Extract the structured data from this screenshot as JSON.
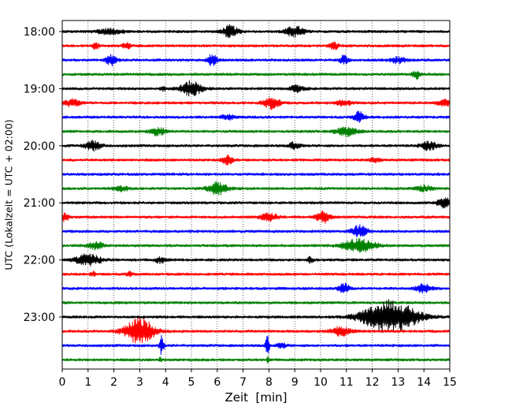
{
  "chart_data": {
    "type": "line",
    "subtype": "helicorder-seismogram",
    "title": "",
    "xlabel": "Zeit  [min]",
    "ylabel": "UTC (Lokalzeit = UTC + 02:00)",
    "xlim": [
      0,
      15
    ],
    "x_ticks": [
      0,
      1,
      2,
      3,
      4,
      5,
      6,
      7,
      8,
      9,
      10,
      11,
      12,
      13,
      14,
      15
    ],
    "x_tick_labels": [
      "0",
      "1",
      "2",
      "3",
      "4",
      "5",
      "6",
      "7",
      "8",
      "9",
      "10",
      "11",
      "12",
      "13",
      "14",
      "15"
    ],
    "y_ticks": [
      {
        "row": 0,
        "label": "18:00"
      },
      {
        "row": 4,
        "label": "19:00"
      },
      {
        "row": 8,
        "label": "20:00"
      },
      {
        "row": 12,
        "label": "21:00"
      },
      {
        "row": 16,
        "label": "22:00"
      },
      {
        "row": 20,
        "label": "23:00"
      }
    ],
    "row_minutes": 15,
    "row_count": 24,
    "grid": "vertical-dotted",
    "color_cycle": [
      "#000000",
      "#ff0000",
      "#0000ff",
      "#008000"
    ],
    "bursts": [
      {
        "row": 0,
        "events": [
          {
            "t": 1.8,
            "a": 0.35,
            "w": 0.5
          },
          {
            "t": 6.5,
            "a": 0.8,
            "w": 0.3
          },
          {
            "t": 9.0,
            "a": 0.7,
            "w": 0.35
          }
        ]
      },
      {
        "row": 1,
        "events": [
          {
            "t": 1.3,
            "a": 0.6,
            "w": 0.1
          },
          {
            "t": 2.5,
            "a": 0.5,
            "w": 0.15
          },
          {
            "t": 10.5,
            "a": 0.7,
            "w": 0.15
          }
        ]
      },
      {
        "row": 2,
        "events": [
          {
            "t": 1.9,
            "a": 0.7,
            "w": 0.2
          },
          {
            "t": 5.8,
            "a": 0.7,
            "w": 0.2
          },
          {
            "t": 10.9,
            "a": 0.6,
            "w": 0.15
          },
          {
            "t": 13.0,
            "a": 0.4,
            "w": 0.3
          }
        ]
      },
      {
        "row": 3,
        "events": [
          {
            "t": 13.7,
            "a": 0.6,
            "w": 0.15
          }
        ]
      },
      {
        "row": 4,
        "events": [
          {
            "t": 5.0,
            "a": 1.0,
            "w": 0.4
          },
          {
            "t": 9.1,
            "a": 0.4,
            "w": 0.3
          },
          {
            "t": 3.9,
            "a": 0.3,
            "w": 0.1
          }
        ]
      },
      {
        "row": 5,
        "events": [
          {
            "t": 0.4,
            "a": 0.5,
            "w": 0.3
          },
          {
            "t": 8.1,
            "a": 0.8,
            "w": 0.3
          },
          {
            "t": 10.9,
            "a": 0.4,
            "w": 0.3
          },
          {
            "t": 14.8,
            "a": 0.4,
            "w": 0.3
          }
        ]
      },
      {
        "row": 6,
        "events": [
          {
            "t": 6.4,
            "a": 0.3,
            "w": 0.3
          },
          {
            "t": 11.5,
            "a": 0.8,
            "w": 0.2
          }
        ]
      },
      {
        "row": 7,
        "events": [
          {
            "t": 3.7,
            "a": 0.5,
            "w": 0.3
          },
          {
            "t": 11.0,
            "a": 0.6,
            "w": 0.4
          }
        ]
      },
      {
        "row": 8,
        "events": [
          {
            "t": 1.2,
            "a": 0.7,
            "w": 0.3
          },
          {
            "t": 9.0,
            "a": 0.5,
            "w": 0.2
          },
          {
            "t": 14.2,
            "a": 0.6,
            "w": 0.3
          }
        ]
      },
      {
        "row": 9,
        "events": [
          {
            "t": 6.4,
            "a": 0.6,
            "w": 0.2
          },
          {
            "t": 12.1,
            "a": 0.3,
            "w": 0.2
          }
        ]
      },
      {
        "row": 10,
        "events": []
      },
      {
        "row": 11,
        "events": [
          {
            "t": 2.3,
            "a": 0.3,
            "w": 0.3
          },
          {
            "t": 6.0,
            "a": 0.8,
            "w": 0.4
          },
          {
            "t": 14.0,
            "a": 0.4,
            "w": 0.3
          }
        ]
      },
      {
        "row": 12,
        "events": [
          {
            "t": 14.8,
            "a": 0.6,
            "w": 0.3
          }
        ]
      },
      {
        "row": 13,
        "events": [
          {
            "t": 0.1,
            "a": 0.5,
            "w": 0.15
          },
          {
            "t": 8.0,
            "a": 0.5,
            "w": 0.35
          },
          {
            "t": 10.1,
            "a": 0.8,
            "w": 0.25
          }
        ]
      },
      {
        "row": 14,
        "events": [
          {
            "t": 11.5,
            "a": 0.8,
            "w": 0.3
          }
        ]
      },
      {
        "row": 15,
        "events": [
          {
            "t": 1.3,
            "a": 0.5,
            "w": 0.3
          },
          {
            "t": 11.5,
            "a": 0.9,
            "w": 0.6
          }
        ]
      },
      {
        "row": 16,
        "events": [
          {
            "t": 1.0,
            "a": 0.75,
            "w": 0.5
          },
          {
            "t": 3.8,
            "a": 0.4,
            "w": 0.2
          },
          {
            "t": 9.6,
            "a": 0.4,
            "w": 0.1
          }
        ]
      },
      {
        "row": 17,
        "events": [
          {
            "t": 1.2,
            "a": 0.3,
            "w": 0.1
          },
          {
            "t": 2.6,
            "a": 0.3,
            "w": 0.1
          }
        ]
      },
      {
        "row": 18,
        "events": [
          {
            "t": 10.9,
            "a": 0.7,
            "w": 0.2
          },
          {
            "t": 14.0,
            "a": 0.6,
            "w": 0.3
          }
        ]
      },
      {
        "row": 19,
        "events": []
      },
      {
        "row": 20,
        "events": [
          {
            "t": 12.7,
            "a": 2.3,
            "w": 1.0
          }
        ]
      },
      {
        "row": 21,
        "events": [
          {
            "t": 3.0,
            "a": 1.8,
            "w": 0.55
          },
          {
            "t": 10.8,
            "a": 0.6,
            "w": 0.4
          }
        ]
      },
      {
        "row": 22,
        "events": [
          {
            "t": 3.85,
            "a": 1.3,
            "w": 0.08
          },
          {
            "t": 7.95,
            "a": 1.3,
            "w": 0.08
          },
          {
            "t": 8.5,
            "a": 0.3,
            "w": 0.2
          }
        ]
      },
      {
        "row": 23,
        "events": [
          {
            "t": 3.8,
            "a": 0.4,
            "w": 0.05
          },
          {
            "t": 7.95,
            "a": 0.4,
            "w": 0.05
          }
        ]
      }
    ]
  }
}
